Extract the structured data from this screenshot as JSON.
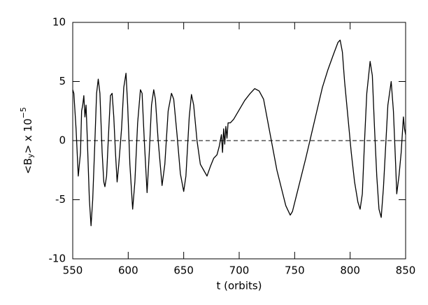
{
  "chart_data": {
    "type": "line",
    "xlabel": "t (orbits)",
    "ylabel": {
      "pre": "<B",
      "sub": "y",
      "mid": "> x 10",
      "sup": "−5"
    },
    "x": [
      550,
      551,
      553,
      555,
      557,
      558,
      559,
      560,
      561,
      562,
      563,
      565,
      566.5,
      568,
      570,
      571.5,
      573,
      574.5,
      576.5,
      578,
      579,
      580.5,
      582.5,
      584,
      585.5,
      587,
      588.5,
      590,
      591.5,
      594,
      596,
      598,
      599.5,
      601.5,
      604,
      606,
      608.5,
      611,
      612.5,
      614.5,
      617,
      619,
      621,
      623,
      624.5,
      627,
      630.5,
      633,
      636,
      639,
      641,
      644,
      647,
      650,
      652,
      655,
      657,
      659,
      662,
      665,
      668,
      671,
      674,
      677,
      680,
      682,
      684,
      685,
      686,
      687,
      688,
      689,
      690,
      692,
      695,
      700,
      705,
      710,
      714,
      718,
      722,
      726,
      730,
      734,
      738,
      742,
      746,
      748,
      752,
      756,
      760,
      765,
      770,
      775,
      780,
      785,
      789,
      791,
      793,
      795,
      798,
      801,
      804,
      807,
      809,
      811,
      813,
      815,
      818,
      820,
      822,
      824,
      826,
      828,
      830,
      832,
      834,
      837,
      839,
      841,
      842,
      844,
      846,
      848,
      849,
      850
    ],
    "series": [
      {
        "color": "#000000",
        "values": [
          4.3,
          4.0,
          1.0,
          -3.0,
          -1.0,
          2.5,
          3.0,
          3.8,
          2.0,
          3.0,
          0.5,
          -5.0,
          -7.2,
          -5.0,
          0.0,
          4.0,
          5.2,
          4.0,
          -1.0,
          -3.5,
          -3.9,
          -3.0,
          1.0,
          3.8,
          4.0,
          2.0,
          -1.0,
          -3.5,
          -2.0,
          1.0,
          4.5,
          5.7,
          3.0,
          -2.0,
          -5.8,
          -3.5,
          1.5,
          4.3,
          4.0,
          0.0,
          -4.4,
          -1.0,
          3.0,
          4.3,
          3.5,
          0.0,
          -3.8,
          -2.0,
          2.5,
          4.0,
          3.5,
          0.5,
          -2.8,
          -4.3,
          -3.0,
          2.0,
          3.9,
          3.0,
          0.0,
          -2.0,
          -2.5,
          -3.0,
          -2.2,
          -1.5,
          -1.2,
          -0.5,
          0.5,
          -1.0,
          1.0,
          -0.3,
          1.2,
          0.2,
          1.5,
          1.5,
          1.8,
          2.6,
          3.4,
          4.0,
          4.4,
          4.2,
          3.5,
          1.5,
          -0.5,
          -2.5,
          -4.0,
          -5.5,
          -6.3,
          -6.0,
          -4.5,
          -3.0,
          -1.5,
          0.5,
          2.5,
          4.5,
          6.0,
          7.3,
          8.3,
          8.5,
          7.5,
          5.0,
          2.0,
          -1.0,
          -3.5,
          -5.2,
          -5.8,
          -4.5,
          0.0,
          4.0,
          6.7,
          5.5,
          1.0,
          -3.0,
          -5.8,
          -6.5,
          -4.0,
          -0.5,
          3.0,
          5.0,
          2.5,
          -2.0,
          -4.5,
          -3.0,
          -1.0,
          2.0,
          1.0,
          0.5
        ]
      }
    ],
    "hline": 0,
    "xlim": [
      550,
      850
    ],
    "xticks": [
      550,
      600,
      650,
      700,
      750,
      800,
      850
    ],
    "ylim": [
      -10,
      10
    ],
    "yticks": [
      -10,
      -5,
      0,
      5,
      10
    ]
  }
}
